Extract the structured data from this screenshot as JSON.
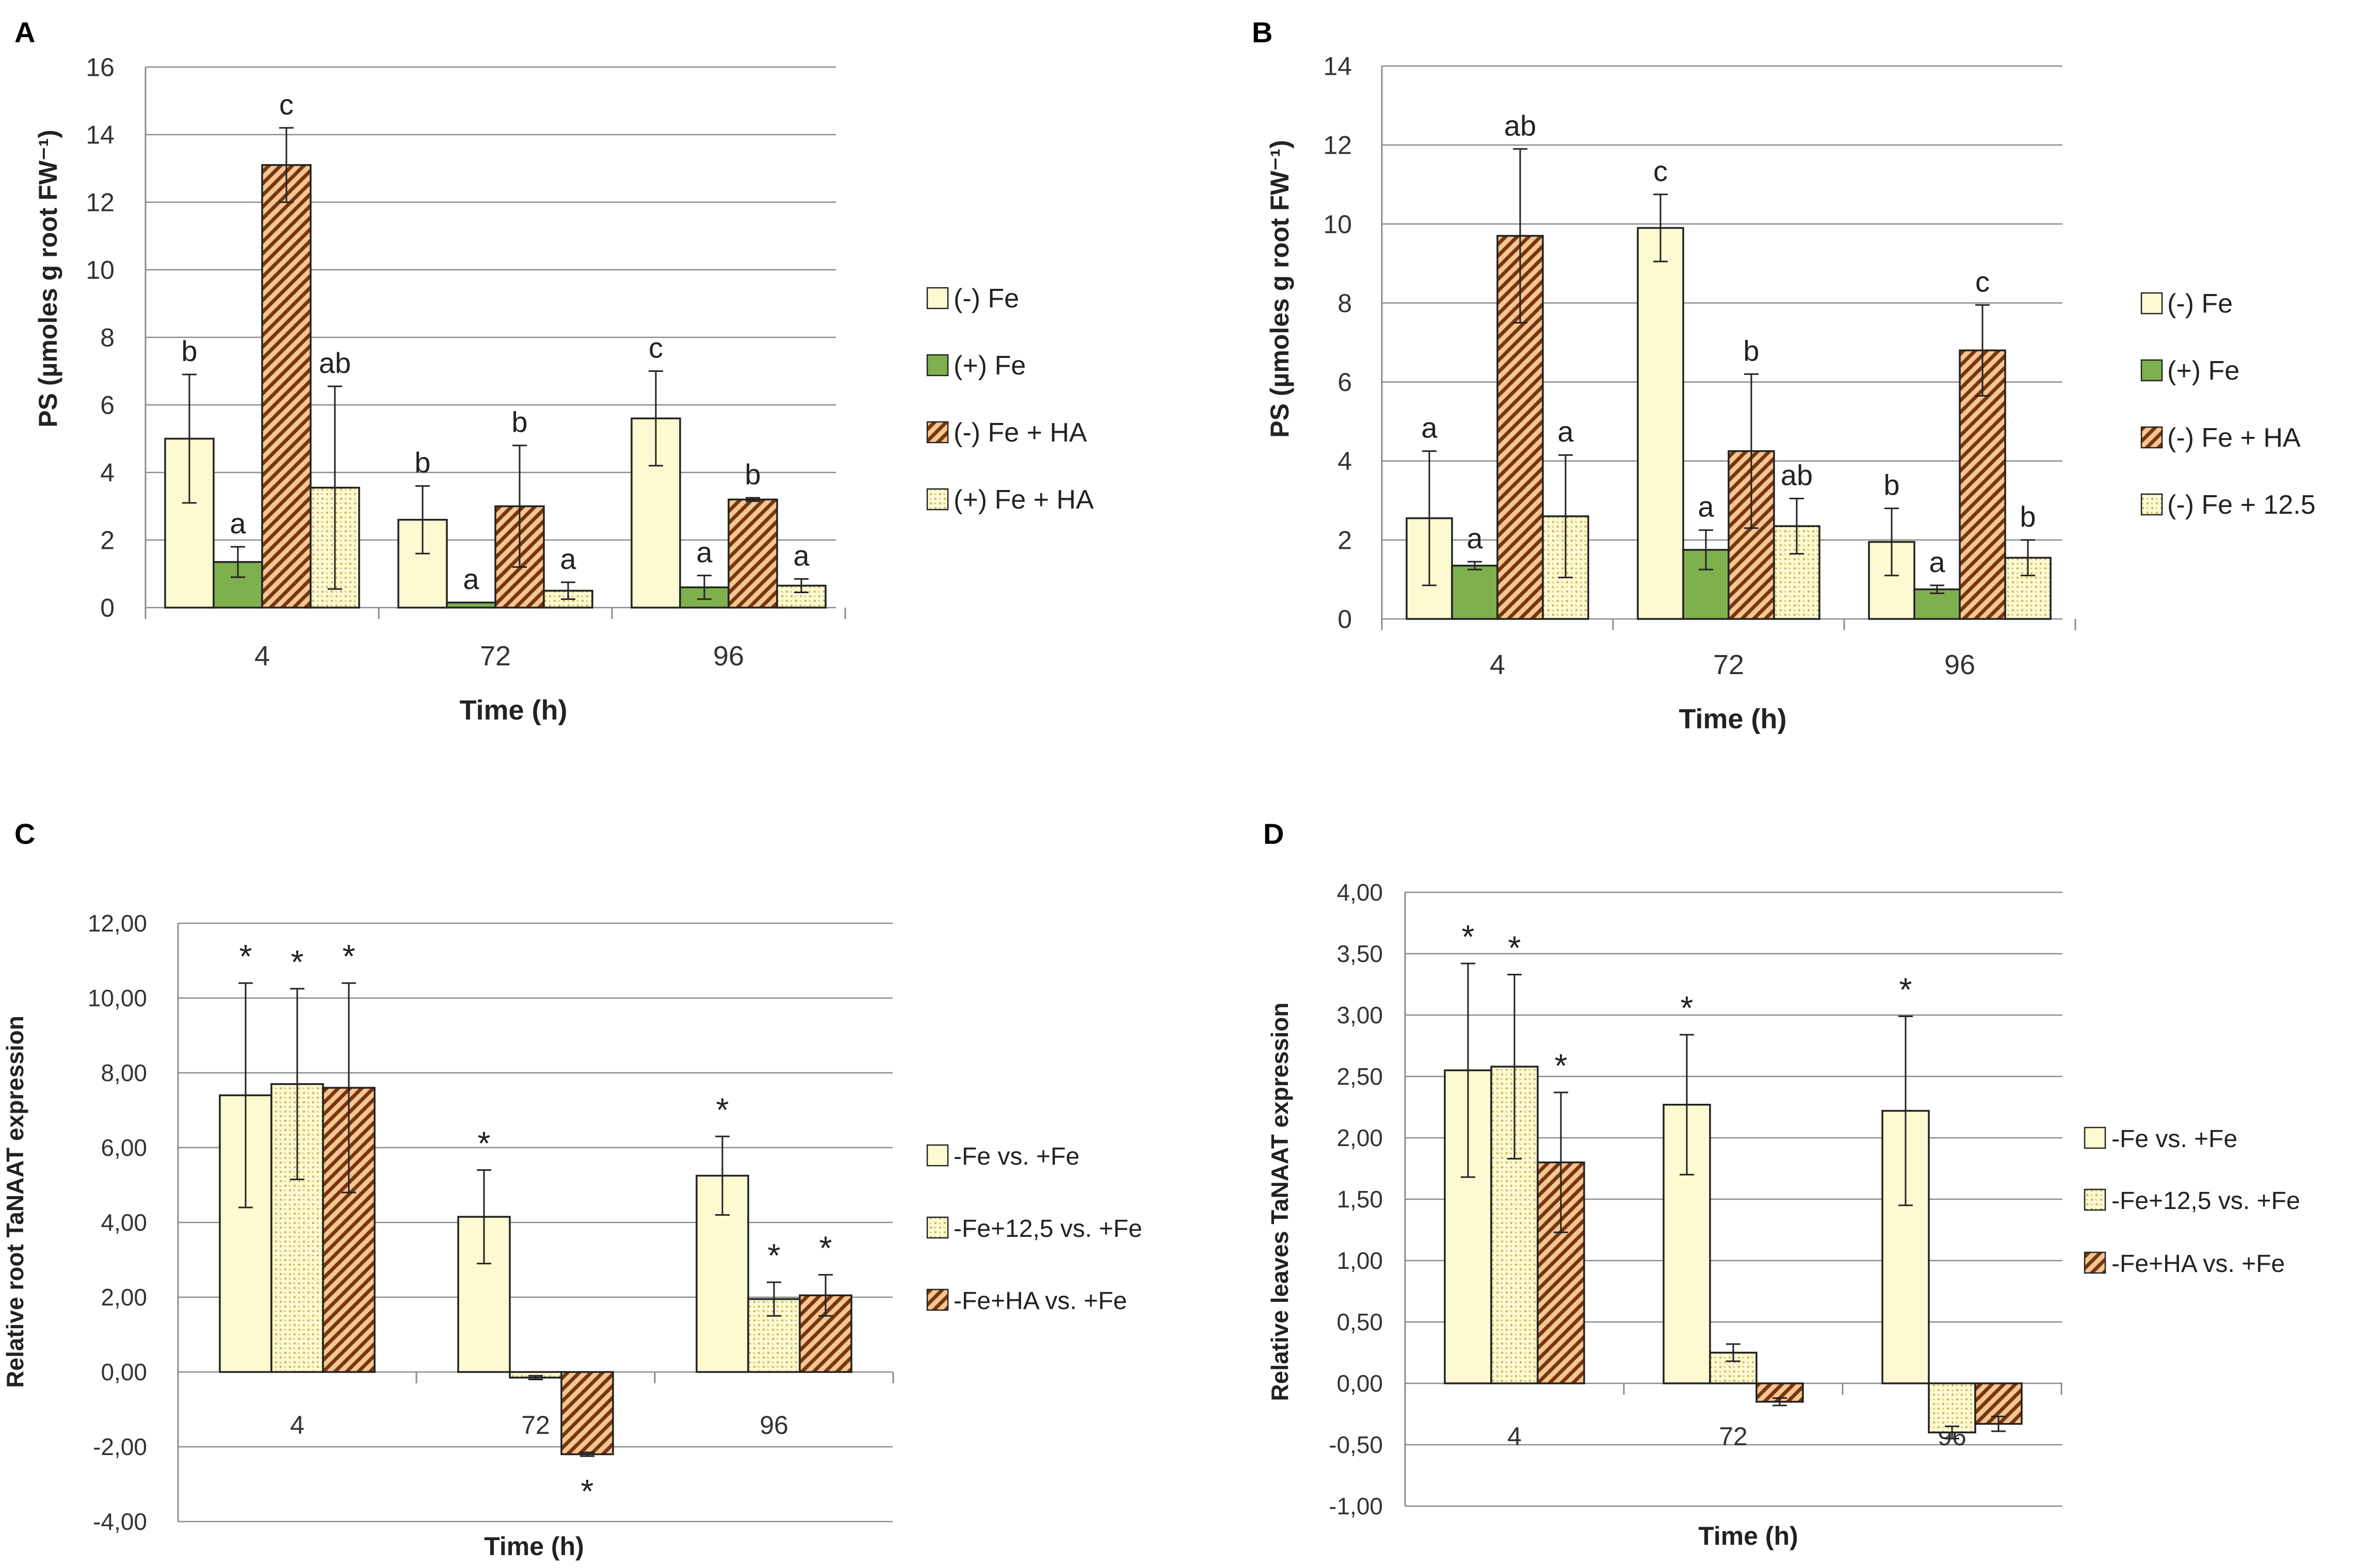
{
  "figure": {
    "colors": {
      "minus_fe": "#fdfad2",
      "plus_fe": "#7fb04e",
      "hatch_bg": "#f4c791",
      "hatch_line": "#7a3510",
      "dot_bg": "#fdfad2",
      "dot_color": "#c9b45a",
      "grid": "#8c8c8c",
      "axis": "#8c8c8c",
      "bar_edge": "#222222"
    }
  },
  "chart_data": [
    {
      "panel": "A",
      "type": "bar",
      "ylabel": "PS (µmoles g root FW⁻¹)",
      "xlabel": "Time (h)",
      "ylim": [
        0,
        16
      ],
      "yticks": [
        0,
        2,
        4,
        6,
        8,
        10,
        12,
        14,
        16
      ],
      "ytick_labels": [
        "0",
        "2",
        "4",
        "6",
        "8",
        "10",
        "12",
        "14",
        "16"
      ],
      "categories": [
        "4",
        "72",
        "96"
      ],
      "series": [
        {
          "name": "(-) Fe",
          "pattern": "minus_fe",
          "values": [
            5.0,
            2.6,
            5.6
          ],
          "errors": [
            1.9,
            1.0,
            1.4
          ],
          "letters": [
            "b",
            "b",
            "c"
          ]
        },
        {
          "name": "(+) Fe",
          "pattern": "plus_fe",
          "values": [
            1.35,
            0.15,
            0.6
          ],
          "errors": [
            0.45,
            0.0,
            0.35
          ],
          "letters": [
            "a",
            "a",
            "a"
          ]
        },
        {
          "name": "(-) Fe + HA",
          "pattern": "hatch",
          "values": [
            13.1,
            3.0,
            3.2
          ],
          "errors": [
            1.1,
            1.8,
            0.05
          ],
          "letters": [
            "c",
            "b",
            "b"
          ]
        },
        {
          "name": "(+) Fe + HA",
          "pattern": "dots",
          "values": [
            3.55,
            0.5,
            0.65
          ],
          "errors": [
            3.0,
            0.25,
            0.2
          ],
          "letters": [
            "ab",
            "a",
            "a"
          ]
        }
      ]
    },
    {
      "panel": "B",
      "type": "bar",
      "ylabel": "PS (µmoles g root FW⁻¹)",
      "xlabel": "Time (h)",
      "ylim": [
        0,
        14
      ],
      "yticks": [
        0,
        2,
        4,
        6,
        8,
        10,
        12,
        14
      ],
      "ytick_labels": [
        "0",
        "2",
        "4",
        "6",
        "8",
        "10",
        "12",
        "14"
      ],
      "categories": [
        "4",
        "72",
        "96"
      ],
      "series": [
        {
          "name": "(-) Fe",
          "pattern": "minus_fe",
          "values": [
            2.55,
            9.9,
            1.95
          ],
          "errors": [
            1.7,
            0.85,
            0.85
          ],
          "letters": [
            "a",
            "c",
            "b"
          ]
        },
        {
          "name": "(+) Fe",
          "pattern": "plus_fe",
          "values": [
            1.35,
            1.75,
            0.75
          ],
          "errors": [
            0.1,
            0.5,
            0.1
          ],
          "letters": [
            "a",
            "a",
            "a"
          ]
        },
        {
          "name": "(-) Fe + HA",
          "pattern": "hatch",
          "values": [
            9.7,
            4.25,
            6.8
          ],
          "errors": [
            2.2,
            1.95,
            1.15
          ],
          "letters": [
            "ab",
            "b",
            "c"
          ]
        },
        {
          "name": "(-) Fe + 12.5",
          "pattern": "dots",
          "values": [
            2.6,
            2.35,
            1.55
          ],
          "errors": [
            1.55,
            0.7,
            0.45
          ],
          "letters": [
            "a",
            "ab",
            "b"
          ]
        }
      ]
    },
    {
      "panel": "C",
      "type": "bar",
      "ylabel": "Relative  root TaNAAT expression",
      "xlabel": "Time (h)",
      "ylim": [
        -4,
        12
      ],
      "yticks": [
        -4,
        -2,
        0,
        2,
        4,
        6,
        8,
        10,
        12
      ],
      "ytick_labels": [
        "-4,00",
        "-2,00",
        "0,00",
        "2,00",
        "4,00",
        "6,00",
        "8,00",
        "10,00",
        "12,00"
      ],
      "categories": [
        "4",
        "72",
        "96"
      ],
      "series": [
        {
          "name": "-Fe vs. +Fe",
          "pattern": "minus_fe",
          "values": [
            7.4,
            4.15,
            5.25
          ],
          "errors": [
            3.0,
            1.25,
            1.05
          ],
          "letters": [
            "*",
            "*",
            "*"
          ]
        },
        {
          "name": "-Fe+12,5 vs. +Fe",
          "pattern": "dots",
          "values": [
            7.7,
            -0.15,
            1.95
          ],
          "errors": [
            2.55,
            0.05,
            0.45
          ],
          "letters": [
            "*",
            "",
            "*"
          ]
        },
        {
          "name": "-Fe+HA vs. +Fe",
          "pattern": "hatch",
          "values": [
            7.6,
            -2.2,
            2.05
          ],
          "errors": [
            2.8,
            0.05,
            0.55
          ],
          "letters": [
            "*",
            "*",
            "*"
          ]
        }
      ]
    },
    {
      "panel": "D",
      "type": "bar",
      "ylabel": "Relative leaves TaNAAT expression",
      "xlabel": "Time (h)",
      "ylim": [
        -1,
        4
      ],
      "yticks": [
        -1,
        -0.5,
        0,
        0.5,
        1,
        1.5,
        2,
        2.5,
        3,
        3.5,
        4
      ],
      "ytick_labels": [
        "-1,00",
        "-0,50",
        "0,00",
        "0,50",
        "1,00",
        "1,50",
        "2,00",
        "2,50",
        "3,00",
        "3,50",
        "4,00"
      ],
      "categories": [
        "4",
        "72",
        "96"
      ],
      "series": [
        {
          "name": "-Fe vs. +Fe",
          "pattern": "minus_fe",
          "values": [
            2.55,
            2.27,
            2.22
          ],
          "errors": [
            0.87,
            0.57,
            0.77
          ],
          "letters": [
            "*",
            "*",
            "*"
          ]
        },
        {
          "name": "-Fe+12,5 vs. +Fe",
          "pattern": "dots",
          "values": [
            2.58,
            0.25,
            -0.4
          ],
          "errors": [
            0.75,
            0.07,
            0.05
          ],
          "letters": [
            "*",
            "",
            ""
          ]
        },
        {
          "name": "-Fe+HA vs. +Fe",
          "pattern": "hatch",
          "values": [
            1.8,
            -0.15,
            -0.33
          ],
          "errors": [
            0.57,
            0.03,
            0.06
          ],
          "letters": [
            "*",
            "",
            ""
          ]
        }
      ]
    }
  ]
}
